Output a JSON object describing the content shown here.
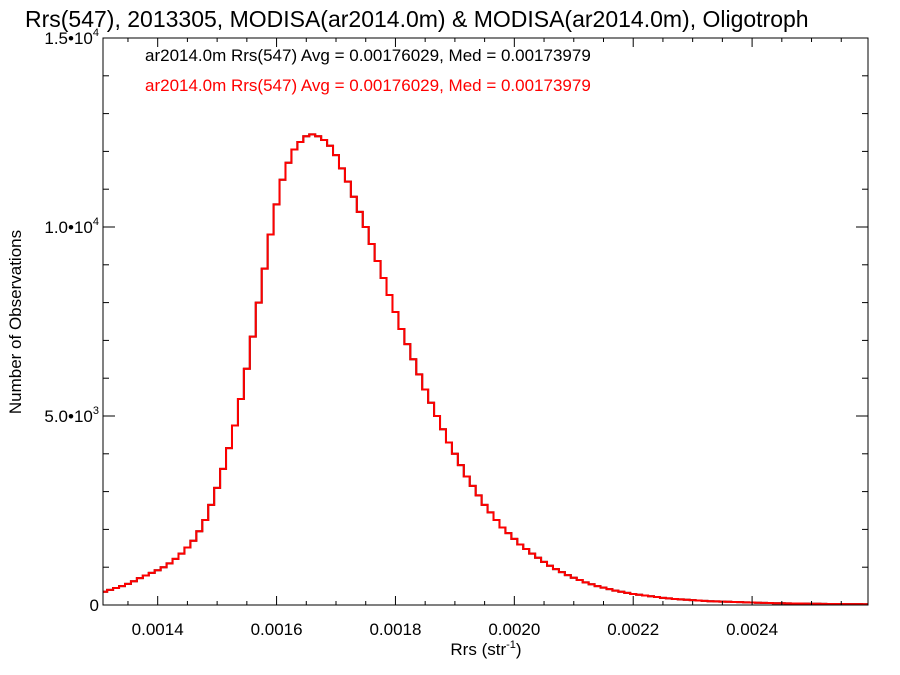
{
  "chart_data": {
    "type": "line",
    "title": "Rrs(547), 2013305, MODISA(ar2014.0m) & MODISA(ar2014.0m), Oligotroph",
    "xlabel": {
      "main": "Rrs (str",
      "sup": "-1",
      "close": ")"
    },
    "ylabel": "Number of Observations",
    "xlim": [
      0.001308,
      0.002595
    ],
    "ylim": [
      0,
      15000
    ],
    "step": true,
    "x_ticks": [
      {
        "value": 0.0014,
        "label": "0.0014"
      },
      {
        "value": 0.0016,
        "label": "0.0016"
      },
      {
        "value": 0.0018,
        "label": "0.0018"
      },
      {
        "value": 0.002,
        "label": "0.0020"
      },
      {
        "value": 0.0022,
        "label": "0.0022"
      },
      {
        "value": 0.0024,
        "label": "0.0024"
      }
    ],
    "y_ticks": [
      {
        "value": 0,
        "label": "0",
        "sup": ""
      },
      {
        "value": 5000,
        "label": "5.0•10",
        "sup": "3"
      },
      {
        "value": 10000,
        "label": "1.0•10",
        "sup": "4"
      },
      {
        "value": 15000,
        "label": "1.5•10",
        "sup": "4"
      }
    ],
    "series": [
      {
        "name": "ar2014.0m Rrs(547) Avg = 0.00176029, Med = 0.00173979",
        "color": "#000000",
        "x": [
          0.00131,
          0.00132,
          0.00133,
          0.00134,
          0.00135,
          0.00136,
          0.00137,
          0.00138,
          0.00139,
          0.0014,
          0.00141,
          0.00142,
          0.00143,
          0.00144,
          0.00145,
          0.00146,
          0.00147,
          0.00148,
          0.00149,
          0.0015,
          0.00151,
          0.00152,
          0.00153,
          0.00154,
          0.00155,
          0.00156,
          0.00157,
          0.00158,
          0.00159,
          0.0016,
          0.00161,
          0.00162,
          0.00163,
          0.00164,
          0.00165,
          0.00166,
          0.00167,
          0.00168,
          0.00169,
          0.0017,
          0.00171,
          0.00172,
          0.00173,
          0.00174,
          0.00175,
          0.00176,
          0.00177,
          0.00178,
          0.00179,
          0.0018,
          0.00181,
          0.00182,
          0.00183,
          0.00184,
          0.00185,
          0.00186,
          0.00187,
          0.00188,
          0.00189,
          0.0019,
          0.00191,
          0.00192,
          0.00193,
          0.00194,
          0.00195,
          0.00196,
          0.00197,
          0.00198,
          0.00199,
          0.002,
          0.00201,
          0.00202,
          0.00203,
          0.00204,
          0.00205,
          0.00206,
          0.00207,
          0.00208,
          0.00209,
          0.0021,
          0.00211,
          0.00212,
          0.00213,
          0.00214,
          0.00215,
          0.00216,
          0.00217,
          0.00218,
          0.00219,
          0.0022,
          0.00221,
          0.00222,
          0.00223,
          0.00224,
          0.00225,
          0.00226,
          0.00227,
          0.00228,
          0.00229,
          0.0023,
          0.00231,
          0.00232,
          0.00233,
          0.00234,
          0.00235,
          0.00236,
          0.00237,
          0.00238,
          0.00239,
          0.0024,
          0.00241,
          0.00242,
          0.00243,
          0.00244,
          0.00245,
          0.00246,
          0.00247,
          0.00248,
          0.00249,
          0.0025,
          0.00251,
          0.00252,
          0.00253,
          0.00254,
          0.00255,
          0.00256,
          0.00257,
          0.00258,
          0.00259
        ],
        "y": [
          350,
          400,
          450,
          500,
          560,
          630,
          710,
          780,
          850,
          920,
          1000,
          1100,
          1220,
          1360,
          1520,
          1700,
          1950,
          2250,
          2650,
          3100,
          3600,
          4150,
          4750,
          5450,
          6250,
          7100,
          8000,
          8900,
          9800,
          10600,
          11250,
          11700,
          12050,
          12250,
          12400,
          12450,
          12400,
          12300,
          12150,
          11900,
          11550,
          11200,
          10800,
          10400,
          10000,
          9550,
          9100,
          8650,
          8200,
          7750,
          7300,
          6900,
          6500,
          6100,
          5700,
          5350,
          5000,
          4650,
          4300,
          4000,
          3700,
          3400,
          3150,
          2900,
          2650,
          2450,
          2250,
          2050,
          1900,
          1750,
          1600,
          1480,
          1360,
          1250,
          1140,
          1040,
          950,
          870,
          790,
          720,
          660,
          600,
          550,
          500,
          460,
          420,
          380,
          350,
          320,
          290,
          270,
          250,
          230,
          210,
          190,
          175,
          160,
          150,
          140,
          130,
          120,
          110,
          100,
          95,
          90,
          85,
          80,
          75,
          70,
          65,
          60,
          56,
          52,
          48,
          45,
          42,
          40,
          38,
          36,
          34,
          32,
          30,
          28,
          26,
          25,
          24,
          23,
          22,
          21
        ]
      },
      {
        "name": "ar2014.0m Rrs(547) Avg = 0.00176029, Med = 0.00173979",
        "color": "#ff0000",
        "x": [
          0.00131,
          0.00132,
          0.00133,
          0.00134,
          0.00135,
          0.00136,
          0.00137,
          0.00138,
          0.00139,
          0.0014,
          0.00141,
          0.00142,
          0.00143,
          0.00144,
          0.00145,
          0.00146,
          0.00147,
          0.00148,
          0.00149,
          0.0015,
          0.00151,
          0.00152,
          0.00153,
          0.00154,
          0.00155,
          0.00156,
          0.00157,
          0.00158,
          0.00159,
          0.0016,
          0.00161,
          0.00162,
          0.00163,
          0.00164,
          0.00165,
          0.00166,
          0.00167,
          0.00168,
          0.00169,
          0.0017,
          0.00171,
          0.00172,
          0.00173,
          0.00174,
          0.00175,
          0.00176,
          0.00177,
          0.00178,
          0.00179,
          0.0018,
          0.00181,
          0.00182,
          0.00183,
          0.00184,
          0.00185,
          0.00186,
          0.00187,
          0.00188,
          0.00189,
          0.0019,
          0.00191,
          0.00192,
          0.00193,
          0.00194,
          0.00195,
          0.00196,
          0.00197,
          0.00198,
          0.00199,
          0.002,
          0.00201,
          0.00202,
          0.00203,
          0.00204,
          0.00205,
          0.00206,
          0.00207,
          0.00208,
          0.00209,
          0.0021,
          0.00211,
          0.00212,
          0.00213,
          0.00214,
          0.00215,
          0.00216,
          0.00217,
          0.00218,
          0.00219,
          0.0022,
          0.00221,
          0.00222,
          0.00223,
          0.00224,
          0.00225,
          0.00226,
          0.00227,
          0.00228,
          0.00229,
          0.0023,
          0.00231,
          0.00232,
          0.00233,
          0.00234,
          0.00235,
          0.00236,
          0.00237,
          0.00238,
          0.00239,
          0.0024,
          0.00241,
          0.00242,
          0.00243,
          0.00244,
          0.00245,
          0.00246,
          0.00247,
          0.00248,
          0.00249,
          0.0025,
          0.00251,
          0.00252,
          0.00253,
          0.00254,
          0.00255,
          0.00256,
          0.00257,
          0.00258,
          0.00259
        ],
        "y": [
          350,
          400,
          450,
          500,
          560,
          630,
          710,
          780,
          850,
          920,
          1000,
          1100,
          1220,
          1360,
          1520,
          1700,
          1950,
          2250,
          2650,
          3100,
          3600,
          4150,
          4750,
          5450,
          6250,
          7100,
          8000,
          8900,
          9800,
          10600,
          11250,
          11700,
          12050,
          12250,
          12400,
          12450,
          12400,
          12300,
          12150,
          11900,
          11550,
          11200,
          10800,
          10400,
          10000,
          9550,
          9100,
          8650,
          8200,
          7750,
          7300,
          6900,
          6500,
          6100,
          5700,
          5350,
          5000,
          4650,
          4300,
          4000,
          3700,
          3400,
          3150,
          2900,
          2650,
          2450,
          2250,
          2050,
          1900,
          1750,
          1600,
          1480,
          1360,
          1250,
          1140,
          1040,
          950,
          870,
          790,
          720,
          660,
          600,
          550,
          500,
          460,
          420,
          380,
          350,
          320,
          290,
          270,
          250,
          230,
          210,
          190,
          175,
          160,
          150,
          140,
          130,
          120,
          110,
          100,
          95,
          90,
          85,
          80,
          75,
          70,
          65,
          60,
          56,
          52,
          48,
          45,
          42,
          40,
          38,
          36,
          34,
          32,
          30,
          28,
          26,
          25,
          24,
          23,
          22,
          21
        ]
      }
    ],
    "legend": "top-left",
    "grid": false
  }
}
